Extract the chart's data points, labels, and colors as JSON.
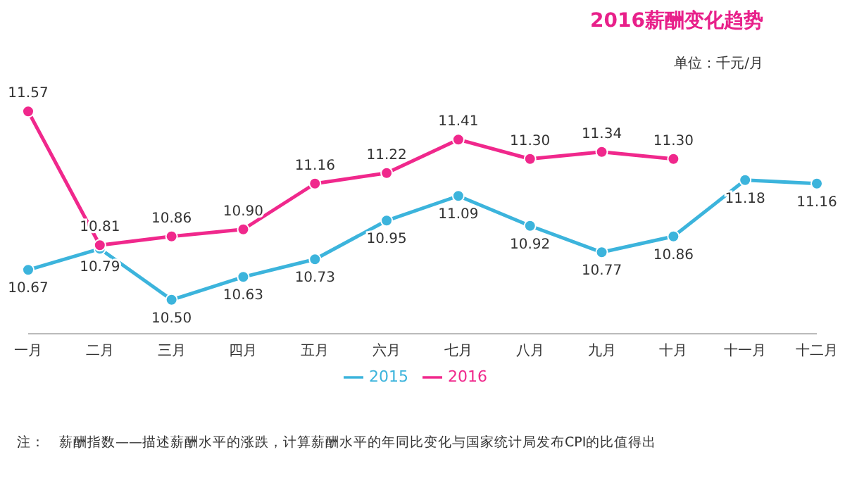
{
  "chart_data": {
    "type": "line",
    "title": "2016薪酬变化趋势",
    "subtitle": "单位：千元/月",
    "categories": [
      "一月",
      "二月",
      "三月",
      "四月",
      "五月",
      "六月",
      "七月",
      "八月",
      "九月",
      "十月",
      "十一月",
      "十二月"
    ],
    "series": [
      {
        "name": "2015",
        "color": "#3cb4dc",
        "values": [
          10.67,
          10.79,
          10.5,
          10.63,
          10.73,
          10.95,
          11.09,
          10.92,
          10.77,
          10.86,
          11.18,
          11.16
        ],
        "value_labels": [
          "10.67",
          "10.79",
          "10.50",
          "10.63",
          "10.73",
          "10.95",
          "11.09",
          "10.92",
          "10.77",
          "10.86",
          "11.18",
          "11.16"
        ]
      },
      {
        "name": "2016",
        "color": "#f0288c",
        "values": [
          11.57,
          10.81,
          10.86,
          10.9,
          11.16,
          11.22,
          11.41,
          11.3,
          11.34,
          11.3,
          null,
          null
        ],
        "value_labels": [
          "11.57",
          "10.81",
          "10.86",
          "10.90",
          "11.16",
          "11.22",
          "11.41",
          "11.30",
          "11.34",
          "11.30",
          null,
          null
        ]
      }
    ],
    "marker": "circle",
    "grid": false,
    "legend": "bottom",
    "annotations": [
      "注：　薪酬指数——描述薪酬水平的涨跌，计算薪酬水平的年同比变化与国家统计局发布CPI的比值得出"
    ]
  }
}
